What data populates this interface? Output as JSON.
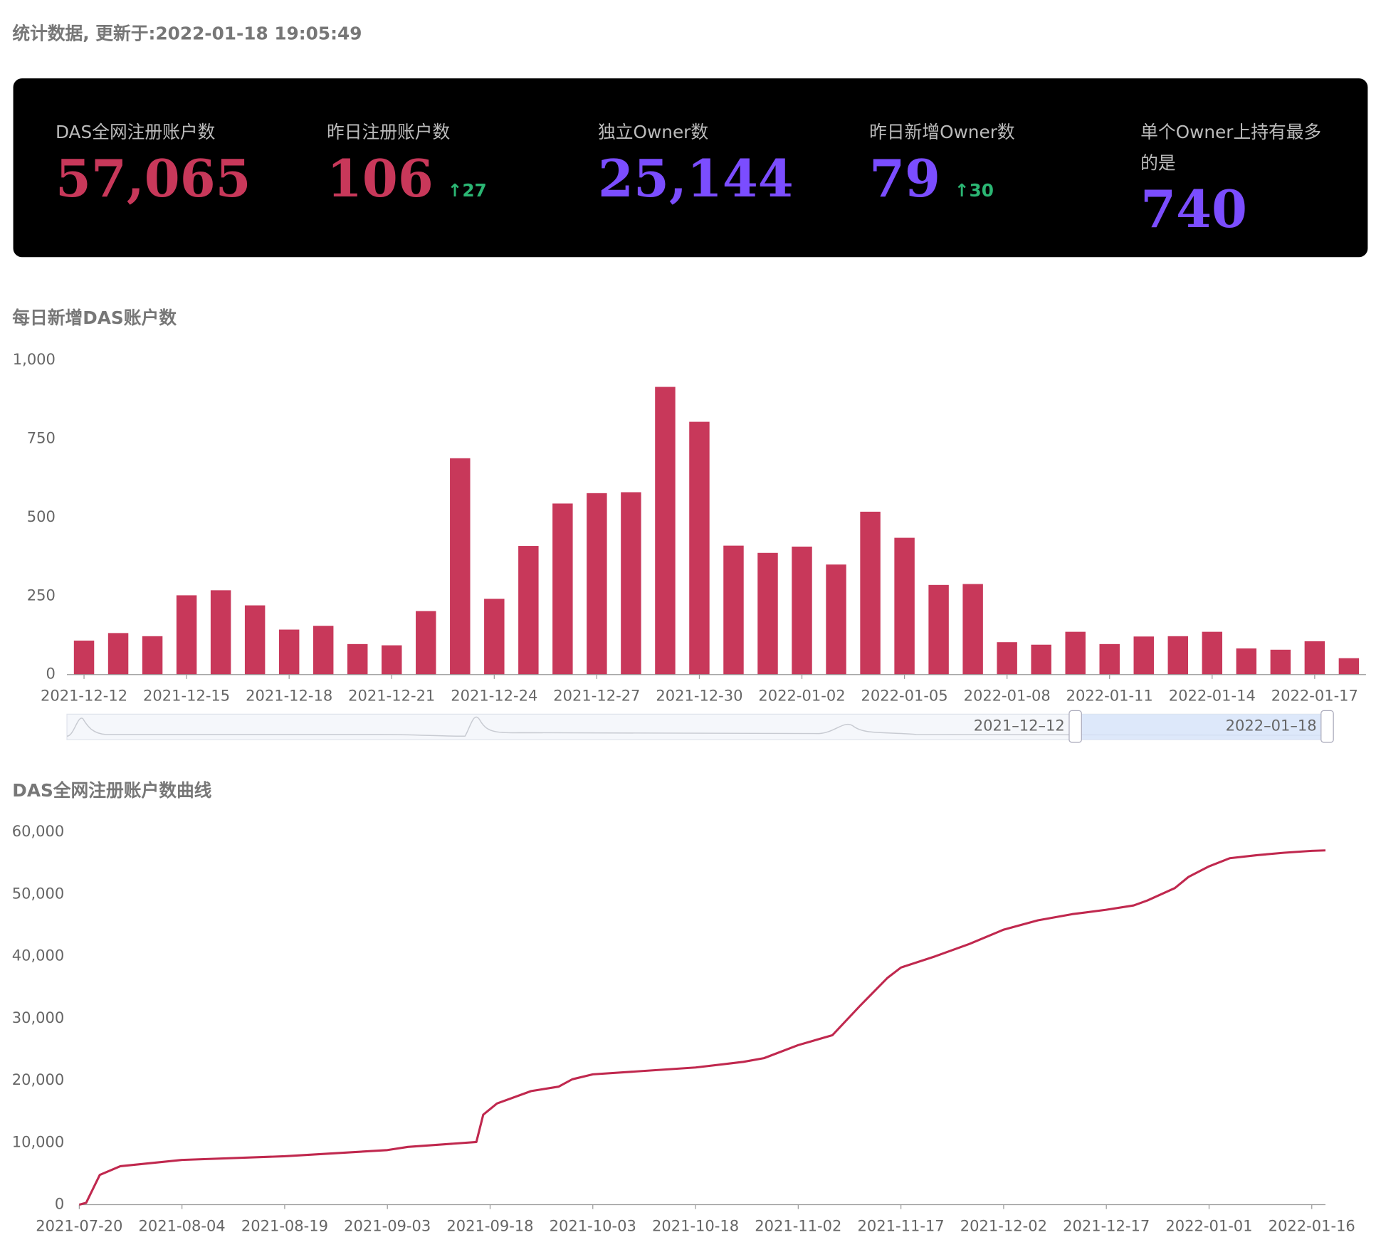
{
  "header": {
    "title": "统计数据, 更新于:2022-01-18 19:05:49"
  },
  "stats": [
    {
      "label": "DAS全网注册账户数",
      "value": "57,065"
    },
    {
      "label": "昨日注册账户数",
      "value": "106",
      "change": "27"
    },
    {
      "label": "独立Owner数",
      "value": "25,144"
    },
    {
      "label": "昨日新增Owner数",
      "value": "79",
      "change": "30"
    },
    {
      "label": "单个Owner上持有最多的是",
      "value": "740"
    }
  ],
  "chart_data": [
    {
      "type": "bar",
      "title": "每日新增DAS账户数",
      "color": "#c8385a",
      "categories": [
        "2021-12-12",
        null,
        null,
        "2021-12-15",
        null,
        null,
        "2021-12-18",
        null,
        null,
        "2021-12-21",
        null,
        null,
        "2021-12-24",
        null,
        null,
        "2021-12-27",
        null,
        null,
        "2021-12-30",
        null,
        null,
        "2022-01-02",
        null,
        null,
        "2022-01-05",
        null,
        null,
        "2022-01-08",
        null,
        null,
        "2022-01-11",
        null,
        null,
        "2022-01-14",
        null,
        null,
        "2022-01-17",
        null
      ],
      "values": [
        108,
        132,
        122,
        252,
        268,
        220,
        143,
        155,
        97,
        93,
        202,
        688,
        241,
        409,
        544,
        577,
        580,
        915,
        804,
        410,
        387,
        407,
        350,
        518,
        435,
        285,
        288,
        103,
        95,
        136,
        97,
        121,
        122,
        136,
        83,
        79,
        106,
        52
      ],
      "ylim": [
        0,
        1000
      ],
      "yticks": [
        0,
        250,
        500,
        750,
        {
          "value": 1000,
          "label": "1,000"
        }
      ],
      "zoom_labels": [
        "2021–12–12",
        "2022–01–18"
      ]
    },
    {
      "type": "line",
      "title": "DAS全网注册账户数曲线",
      "xlim": [
        "2021-07-20",
        "2022-01-18"
      ],
      "xticks": [
        "2021-07-20",
        "2021-08-04",
        "2021-08-19",
        "2021-09-03",
        "2021-09-18",
        "2021-10-03",
        "2021-10-18",
        "2021-11-02",
        "2021-11-17",
        "2021-12-02",
        "2021-12-17",
        "2022-01-01",
        "2022-01-16"
      ],
      "ylim": [
        0,
        60000
      ],
      "yticks": [
        0,
        {
          "value": 10000,
          "label": "10,000"
        },
        {
          "value": 20000,
          "label": "20,000"
        },
        {
          "value": 30000,
          "label": "30,000"
        },
        {
          "value": 40000,
          "label": "40,000"
        },
        {
          "value": 50000,
          "label": "50,000"
        },
        {
          "value": 60000,
          "label": "60,000"
        }
      ],
      "series": [
        {
          "color": "#c0284e",
          "x": [
            "2021-07-20",
            "2021-07-21",
            "2021-07-23",
            "2021-07-26",
            "2021-08-04",
            "2021-08-19",
            "2021-09-03",
            "2021-09-06",
            "2021-09-16",
            "2021-09-17",
            "2021-09-19",
            "2021-09-24",
            "2021-09-28",
            "2021-09-30",
            "2021-10-03",
            "2021-10-18",
            "2021-10-25",
            "2021-10-28",
            "2021-11-02",
            "2021-11-07",
            "2021-11-11",
            "2021-11-15",
            "2021-11-17",
            "2021-11-22",
            "2021-11-27",
            "2021-12-02",
            "2021-12-07",
            "2021-12-12",
            "2021-12-17",
            "2021-12-21",
            "2021-12-23",
            "2021-12-27",
            "2021-12-29",
            "2022-01-01",
            "2022-01-04",
            "2022-01-08",
            "2022-01-12",
            "2022-01-16",
            "2022-01-18"
          ],
          "values": [
            0,
            300,
            4800,
            6200,
            7200,
            7800,
            8800,
            9300,
            10100,
            14500,
            16300,
            18300,
            19000,
            20200,
            21000,
            22100,
            23000,
            23600,
            25700,
            27300,
            32000,
            36500,
            38200,
            40000,
            42000,
            44300,
            45800,
            46800,
            47500,
            48200,
            49000,
            51000,
            52800,
            54500,
            55800,
            56300,
            56700,
            57000,
            57065
          ]
        }
      ]
    }
  ]
}
